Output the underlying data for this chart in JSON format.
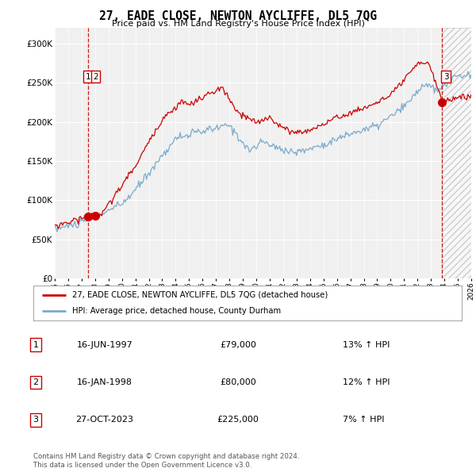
{
  "title": "27, EADE CLOSE, NEWTON AYCLIFFE, DL5 7QG",
  "subtitle": "Price paid vs. HM Land Registry's House Price Index (HPI)",
  "legend_label_red": "27, EADE CLOSE, NEWTON AYCLIFFE, DL5 7QG (detached house)",
  "legend_label_blue": "HPI: Average price, detached house, County Durham",
  "table_rows": [
    {
      "num": "1",
      "date": "16-JUN-1997",
      "price": "£79,000",
      "hpi": "13% ↑ HPI"
    },
    {
      "num": "2",
      "date": "16-JAN-1998",
      "price": "£80,000",
      "hpi": "12% ↑ HPI"
    },
    {
      "num": "3",
      "date": "27-OCT-2023",
      "price": "£225,000",
      "hpi": "7% ↑ HPI"
    }
  ],
  "footer": "Contains HM Land Registry data © Crown copyright and database right 2024.\nThis data is licensed under the Open Government Licence v3.0.",
  "sale_dates_float": [
    1997.46,
    1998.04,
    2023.82
  ],
  "sale_prices": [
    79000,
    80000,
    225000
  ],
  "vline_dates_float": [
    1997.46,
    2023.82
  ],
  "ylim": [
    0,
    320000
  ],
  "yticks": [
    0,
    50000,
    100000,
    150000,
    200000,
    250000,
    300000
  ],
  "xlim_start": 1995.0,
  "xlim_end": 2026.0,
  "color_red": "#cc0000",
  "color_blue": "#7aabcc",
  "color_vline": "#cc0000",
  "background_chart": "#f0f0f0",
  "background_fig": "#ffffff",
  "hatch_start": 2023.82
}
